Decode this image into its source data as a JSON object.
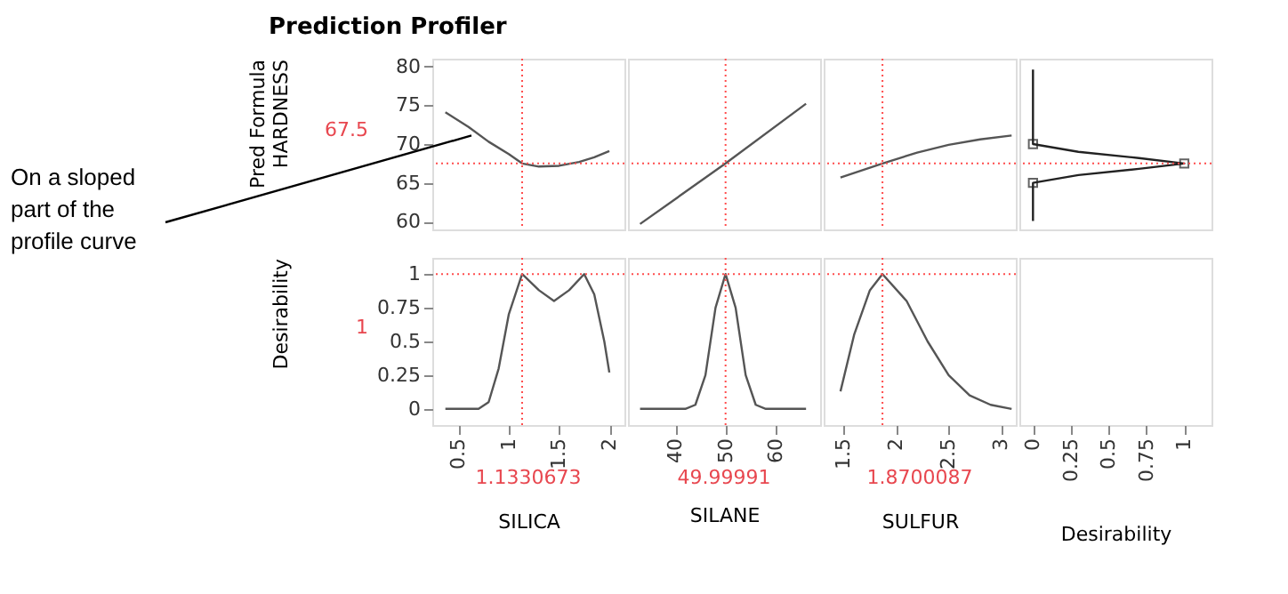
{
  "chart_data": [
    {
      "type": "line",
      "title": "Prediction Profiler",
      "ylabel": "Pred Formula\nHARDNESS",
      "xlim": [
        0.24,
        2.15
      ],
      "ylim": [
        59,
        81
      ],
      "yticks": [
        60,
        65,
        70,
        75,
        80
      ],
      "tick_labels": "y",
      "series": [
        {
          "color": "#555555",
          "x": [
            0.37,
            0.6,
            0.8,
            1.0,
            1.133,
            1.3,
            1.5,
            1.7,
            1.85,
            2.0
          ],
          "values": [
            74.1,
            72.2,
            70.3,
            68.7,
            67.5,
            67.1,
            67.2,
            67.7,
            68.3,
            69.1
          ]
        }
      ],
      "ref_lines": [
        {
          "axis": "x",
          "value": 1.133,
          "color": "#ff4d4d",
          "line_style": "dotted"
        },
        {
          "axis": "y",
          "value": 67.5,
          "color": "#ff4d4d",
          "line_style": "dotted"
        }
      ],
      "annotations": [
        "67.5",
        "On a sloped\npart of the\nprofile curve"
      ]
    },
    {
      "type": "line",
      "xlim": [
        30.6,
        68.8
      ],
      "ylim": [
        59,
        81
      ],
      "tick_labels": false,
      "series": [
        {
          "color": "#555555",
          "x": [
            33,
            50,
            66
          ],
          "values": [
            59.7,
            67.5,
            75.2
          ]
        }
      ],
      "ref_lines": [
        {
          "axis": "x",
          "value": 50,
          "color": "#ff4d4d",
          "line_style": "dotted"
        },
        {
          "axis": "y",
          "value": 67.5,
          "color": "#ff4d4d",
          "line_style": "dotted"
        }
      ]
    },
    {
      "type": "line",
      "xlim": [
        1.31,
        3.14
      ],
      "ylim": [
        59,
        81
      ],
      "tick_labels": false,
      "series": [
        {
          "color": "#555555",
          "x": [
            1.47,
            1.87,
            2.2,
            2.5,
            2.8,
            3.1
          ],
          "values": [
            65.7,
            67.5,
            68.9,
            69.9,
            70.6,
            71.1
          ]
        }
      ],
      "ref_lines": [
        {
          "axis": "x",
          "value": 1.87,
          "color": "#ff4d4d",
          "line_style": "dotted"
        },
        {
          "axis": "y",
          "value": 67.5,
          "color": "#ff4d4d",
          "line_style": "dotted"
        }
      ]
    },
    {
      "type": "line",
      "xlim": [
        -0.09,
        1.18
      ],
      "ylim": [
        59,
        81
      ],
      "tick_labels": false,
      "series": [
        {
          "color": "#222222",
          "x": [
            0,
            0,
            0.3,
            0.7,
            1,
            0.7,
            0.3,
            0,
            0
          ],
          "values": [
            79.6,
            70,
            69,
            68.2,
            67.5,
            66.8,
            66,
            65,
            60.1
          ]
        },
        {
          "type": "scatter",
          "marker": "square",
          "color": "#222222",
          "x": [
            0,
            1,
            0
          ],
          "values": [
            70,
            67.5,
            65
          ]
        }
      ],
      "ref_lines": [
        {
          "axis": "y",
          "value": 67.5,
          "color": "#ff4d4d",
          "line_style": "dotted"
        }
      ]
    },
    {
      "type": "line",
      "ylabel": "Desirability",
      "xlabel": "SILICA",
      "xlim": [
        0.24,
        2.15
      ],
      "xticks": [
        0.5,
        1,
        1.5,
        2
      ],
      "ylim": [
        -0.12,
        1.12
      ],
      "yticks": [
        0,
        0.25,
        0.5,
        0.75,
        1
      ],
      "series": [
        {
          "color": "#555555",
          "x": [
            0.37,
            0.7,
            0.8,
            0.9,
            1.0,
            1.133,
            1.3,
            1.45,
            1.6,
            1.75,
            1.85,
            1.95,
            2.0
          ],
          "values": [
            0,
            0,
            0.05,
            0.3,
            0.7,
            1,
            0.88,
            0.8,
            0.88,
            1,
            0.85,
            0.5,
            0.27
          ]
        }
      ],
      "ref_lines": [
        {
          "axis": "x",
          "value": 1.133,
          "color": "#ff4d4d",
          "line_style": "dotted"
        },
        {
          "axis": "y",
          "value": 1,
          "color": "#ff4d4d",
          "line_style": "dotted"
        }
      ],
      "annotations": [
        "1",
        "1.1330673"
      ]
    },
    {
      "type": "line",
      "xlabel": "SILANE",
      "xlim": [
        30.6,
        68.8
      ],
      "xticks": [
        40,
        50,
        60
      ],
      "ylim": [
        -0.12,
        1.12
      ],
      "tick_labels": "x",
      "series": [
        {
          "color": "#555555",
          "x": [
            33,
            42,
            44,
            46,
            48,
            50,
            52,
            54,
            56,
            58,
            66
          ],
          "values": [
            0,
            0,
            0.03,
            0.25,
            0.75,
            1,
            0.75,
            0.25,
            0.03,
            0,
            0
          ]
        }
      ],
      "ref_lines": [
        {
          "axis": "x",
          "value": 50,
          "color": "#ff4d4d",
          "line_style": "dotted"
        },
        {
          "axis": "y",
          "value": 1,
          "color": "#ff4d4d",
          "line_style": "dotted"
        }
      ],
      "annotations": [
        "49.99991"
      ]
    },
    {
      "type": "line",
      "xlabel": "SULFUR",
      "xlim": [
        1.31,
        3.14
      ],
      "xticks": [
        1.5,
        2,
        2.5,
        3
      ],
      "ylim": [
        -0.12,
        1.12
      ],
      "tick_labels": "x",
      "series": [
        {
          "color": "#555555",
          "x": [
            1.47,
            1.6,
            1.75,
            1.87,
            2.1,
            2.3,
            2.5,
            2.7,
            2.9,
            3.1
          ],
          "values": [
            0.13,
            0.55,
            0.88,
            1,
            0.8,
            0.5,
            0.25,
            0.1,
            0.03,
            0
          ]
        }
      ],
      "ref_lines": [
        {
          "axis": "x",
          "value": 1.87,
          "color": "#ff4d4d",
          "line_style": "dotted"
        },
        {
          "axis": "y",
          "value": 1,
          "color": "#ff4d4d",
          "line_style": "dotted"
        }
      ],
      "annotations": [
        "1.8700087"
      ]
    },
    {
      "type": "line",
      "xlabel": "Desirability",
      "xlim": [
        -0.09,
        1.18
      ],
      "xticks": [
        0,
        0.25,
        0.5,
        0.75,
        1
      ],
      "ylim": [
        -0.12,
        1.12
      ],
      "tick_labels": "x"
    }
  ]
}
